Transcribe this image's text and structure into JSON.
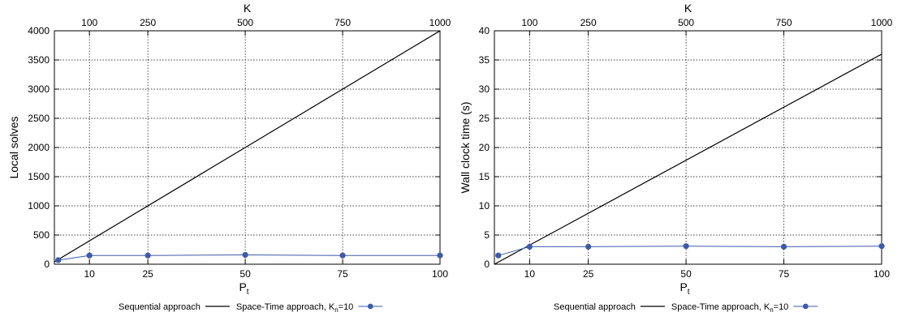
{
  "chart_data": [
    {
      "type": "line",
      "xlabel": "P",
      "xlabel_sub": "t",
      "ylabel": "Local solves",
      "x2label": "K",
      "xlim": [
        1,
        100
      ],
      "ylim": [
        0,
        4000
      ],
      "x_ticks": [
        10,
        25,
        50,
        75,
        100
      ],
      "x_tick_labels": [
        "10",
        "25",
        "50",
        "75",
        "100"
      ],
      "x2_ticks": [
        10,
        25,
        50,
        75,
        100
      ],
      "x2_tick_labels": [
        "100",
        "250",
        "500",
        "750",
        "1000"
      ],
      "y_ticks": [
        0,
        500,
        1000,
        1500,
        2000,
        2500,
        3000,
        3500,
        4000
      ],
      "y_tick_labels": [
        "0",
        "500",
        "1000",
        "1500",
        "2000",
        "2500",
        "3000",
        "3500",
        "4000"
      ],
      "grid": true,
      "legend_position": "bottom",
      "series": [
        {
          "name": "Sequential approach",
          "color": "#000000",
          "marker": false,
          "x": [
            1,
            100
          ],
          "values": [
            40,
            4000
          ]
        },
        {
          "name": "Space-Time approach, K",
          "name_sub": "n",
          "name_tail": "=10",
          "color": "#3d5ba9",
          "marker": true,
          "x": [
            2,
            10,
            25,
            50,
            75,
            100
          ],
          "values": [
            70,
            150,
            150,
            160,
            150,
            150
          ]
        }
      ]
    },
    {
      "type": "line",
      "xlabel": "P",
      "xlabel_sub": "t",
      "ylabel": "Wall clock time (s)",
      "x2label": "K",
      "xlim": [
        1,
        100
      ],
      "ylim": [
        0,
        40
      ],
      "x_ticks": [
        10,
        25,
        50,
        75,
        100
      ],
      "x_tick_labels": [
        "10",
        "25",
        "50",
        "75",
        "100"
      ],
      "x2_ticks": [
        10,
        25,
        50,
        75,
        100
      ],
      "x2_tick_labels": [
        "100",
        "250",
        "500",
        "750",
        "1000"
      ],
      "y_ticks": [
        0,
        5,
        10,
        15,
        20,
        25,
        30,
        35,
        40
      ],
      "y_tick_labels": [
        "0",
        "5",
        "10",
        "15",
        "20",
        "25",
        "30",
        "35",
        "40"
      ],
      "grid": true,
      "legend_position": "bottom",
      "series": [
        {
          "name": "Sequential approach",
          "color": "#000000",
          "marker": false,
          "x": [
            1,
            100
          ],
          "values": [
            0,
            36
          ]
        },
        {
          "name": "Space-Time approach, K",
          "name_sub": "n",
          "name_tail": "=10",
          "color": "#3d5ba9",
          "marker": true,
          "x": [
            2,
            10,
            25,
            50,
            75,
            100
          ],
          "values": [
            1.5,
            3.0,
            3.0,
            3.1,
            3.0,
            3.1
          ]
        }
      ]
    }
  ]
}
